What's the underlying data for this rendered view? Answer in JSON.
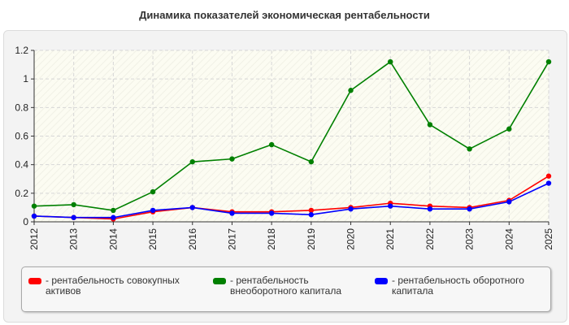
{
  "chart_data": {
    "type": "line",
    "title": "Динамика показателей экономическая рентабельности",
    "x": [
      "2012",
      "2013",
      "2014",
      "2015",
      "2016",
      "2017",
      "2018",
      "2019",
      "2020",
      "2021",
      "2022",
      "2023",
      "2024",
      "2025"
    ],
    "ylim": [
      0,
      1.2
    ],
    "yticks": [
      0,
      0.2,
      0.4,
      0.6,
      0.8,
      1,
      1.2
    ],
    "ytick_labels": [
      "0",
      "0.2",
      "0.4",
      "0.6",
      "0.8",
      "1",
      "1.2"
    ],
    "grid": true,
    "legend_position": "bottom",
    "series": [
      {
        "name": "- рентабельность совокупных активов",
        "color": "#ff0000",
        "values": [
          0.04,
          0.03,
          0.02,
          0.07,
          0.1,
          0.07,
          0.07,
          0.08,
          0.1,
          0.13,
          0.11,
          0.1,
          0.15,
          0.32
        ]
      },
      {
        "name": "- рентабельность внеоборотного капитала",
        "color": "#008000",
        "values": [
          0.11,
          0.12,
          0.08,
          0.21,
          0.42,
          0.44,
          0.54,
          0.42,
          0.92,
          1.12,
          0.68,
          0.51,
          0.65,
          1.12
        ]
      },
      {
        "name": "- рентабельность оборотного капитала",
        "color": "#0000ff",
        "values": [
          0.04,
          0.03,
          0.03,
          0.08,
          0.1,
          0.06,
          0.06,
          0.05,
          0.09,
          0.11,
          0.09,
          0.09,
          0.14,
          0.27
        ]
      }
    ]
  }
}
